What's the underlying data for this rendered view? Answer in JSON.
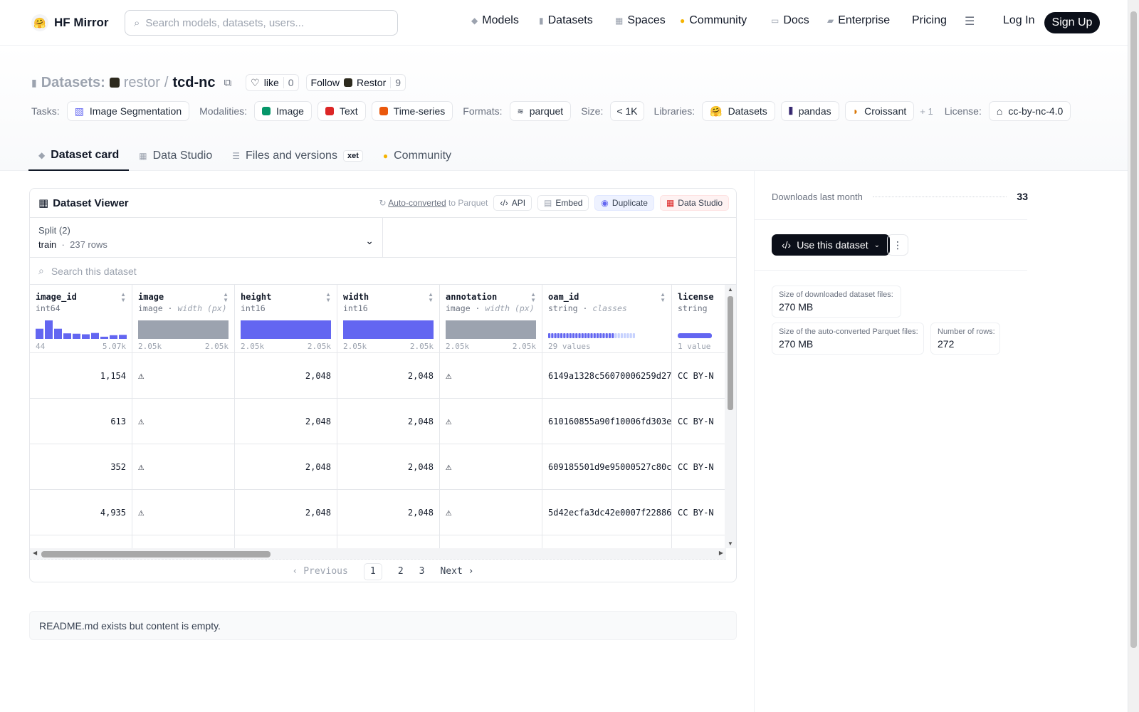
{
  "header": {
    "brand": "HF Mirror",
    "search_placeholder": "Search models, datasets, users...",
    "nav": {
      "models": "Models",
      "datasets": "Datasets",
      "spaces": "Spaces",
      "community": "Community",
      "docs": "Docs",
      "enterprise": "Enterprise",
      "pricing": "Pricing",
      "login": "Log In",
      "signup": "Sign Up"
    }
  },
  "repo": {
    "section": "Datasets:",
    "org": "restor",
    "sep": "/",
    "name": "tcd-nc",
    "like_label": "like",
    "like_count": "0",
    "follow_label": "Follow",
    "follow_org": "Restor",
    "follow_count": "9"
  },
  "tags": {
    "tasks_label": "Tasks:",
    "task": "Image Segmentation",
    "modalities_label": "Modalities:",
    "modalities": [
      "Image",
      "Text",
      "Time-series"
    ],
    "formats_label": "Formats:",
    "format": "parquet",
    "size_label": "Size:",
    "size": "< 1K",
    "libraries_label": "Libraries:",
    "libraries": [
      "Datasets",
      "pandas",
      "Croissant"
    ],
    "libraries_more": "+ 1",
    "license_label": "License:",
    "license": "cc-by-nc-4.0"
  },
  "tabs": {
    "card": "Dataset card",
    "studio": "Data Studio",
    "files": "Files and versions",
    "files_badge": "xet",
    "community": "Community"
  },
  "viewer": {
    "title": "Dataset Viewer",
    "auto_converted": "Auto-converted",
    "to_parquet": "to Parquet",
    "api": "API",
    "embed": "Embed",
    "duplicate": "Duplicate",
    "data_studio": "Data Studio",
    "split_label": "Split (2)",
    "split_name": "train",
    "split_rows": "237 rows",
    "search_placeholder": "Search this dataset",
    "columns": {
      "image_id": {
        "name": "image_id",
        "type": "int64",
        "min": "44",
        "max": "5.07k"
      },
      "image": {
        "name": "image",
        "type": "image",
        "sub": "width (px)",
        "min": "2.05k",
        "max": "2.05k"
      },
      "height": {
        "name": "height",
        "type": "int16",
        "min": "2.05k",
        "max": "2.05k"
      },
      "width": {
        "name": "width",
        "type": "int16",
        "min": "2.05k",
        "max": "2.05k"
      },
      "annotation": {
        "name": "annotation",
        "type": "image",
        "sub": "width (px)",
        "min": "2.05k",
        "max": "2.05k"
      },
      "oam_id": {
        "name": "oam_id",
        "type": "string",
        "sub": "classes",
        "summary": "29 values"
      },
      "license": {
        "name": "license",
        "type": "string",
        "summary": "1 value"
      }
    },
    "histogram_image_id": [
      0.55,
      1.0,
      0.55,
      0.3,
      0.28,
      0.25,
      0.32,
      0.12,
      0.2,
      0.22
    ],
    "rows": [
      {
        "image_id": "1,154",
        "height": "2,048",
        "width": "2,048",
        "oam_id": "6149a1328c56070006259d27",
        "license": "CC BY-N"
      },
      {
        "image_id": "613",
        "height": "2,048",
        "width": "2,048",
        "oam_id": "610160855a90f10006fd303e",
        "license": "CC BY-N"
      },
      {
        "image_id": "352",
        "height": "2,048",
        "width": "2,048",
        "oam_id": "609185501d9e95000527c80c",
        "license": "CC BY-N"
      },
      {
        "image_id": "4,935",
        "height": "2,048",
        "width": "2,048",
        "oam_id": "5d42ecfa3dc42e0007f22886",
        "license": "CC BY-N"
      }
    ],
    "pager": {
      "prev": "Previous",
      "pages": [
        "1",
        "2",
        "3"
      ],
      "next": "Next"
    }
  },
  "readme": "README.md exists but content is empty.",
  "sidebar": {
    "downloads_label": "Downloads last month",
    "downloads_value": "33",
    "use_button": "Use this dataset",
    "stats": {
      "downloaded_label": "Size of downloaded dataset files:",
      "downloaded_value": "270 MB",
      "parquet_label": "Size of the auto-converted Parquet files:",
      "parquet_value": "270 MB",
      "rows_label": "Number of rows:",
      "rows_value": "272"
    }
  },
  "colors": {
    "accent": "#6366f1",
    "gray_bar": "#9ca3af",
    "dark": "#0b0f19"
  }
}
